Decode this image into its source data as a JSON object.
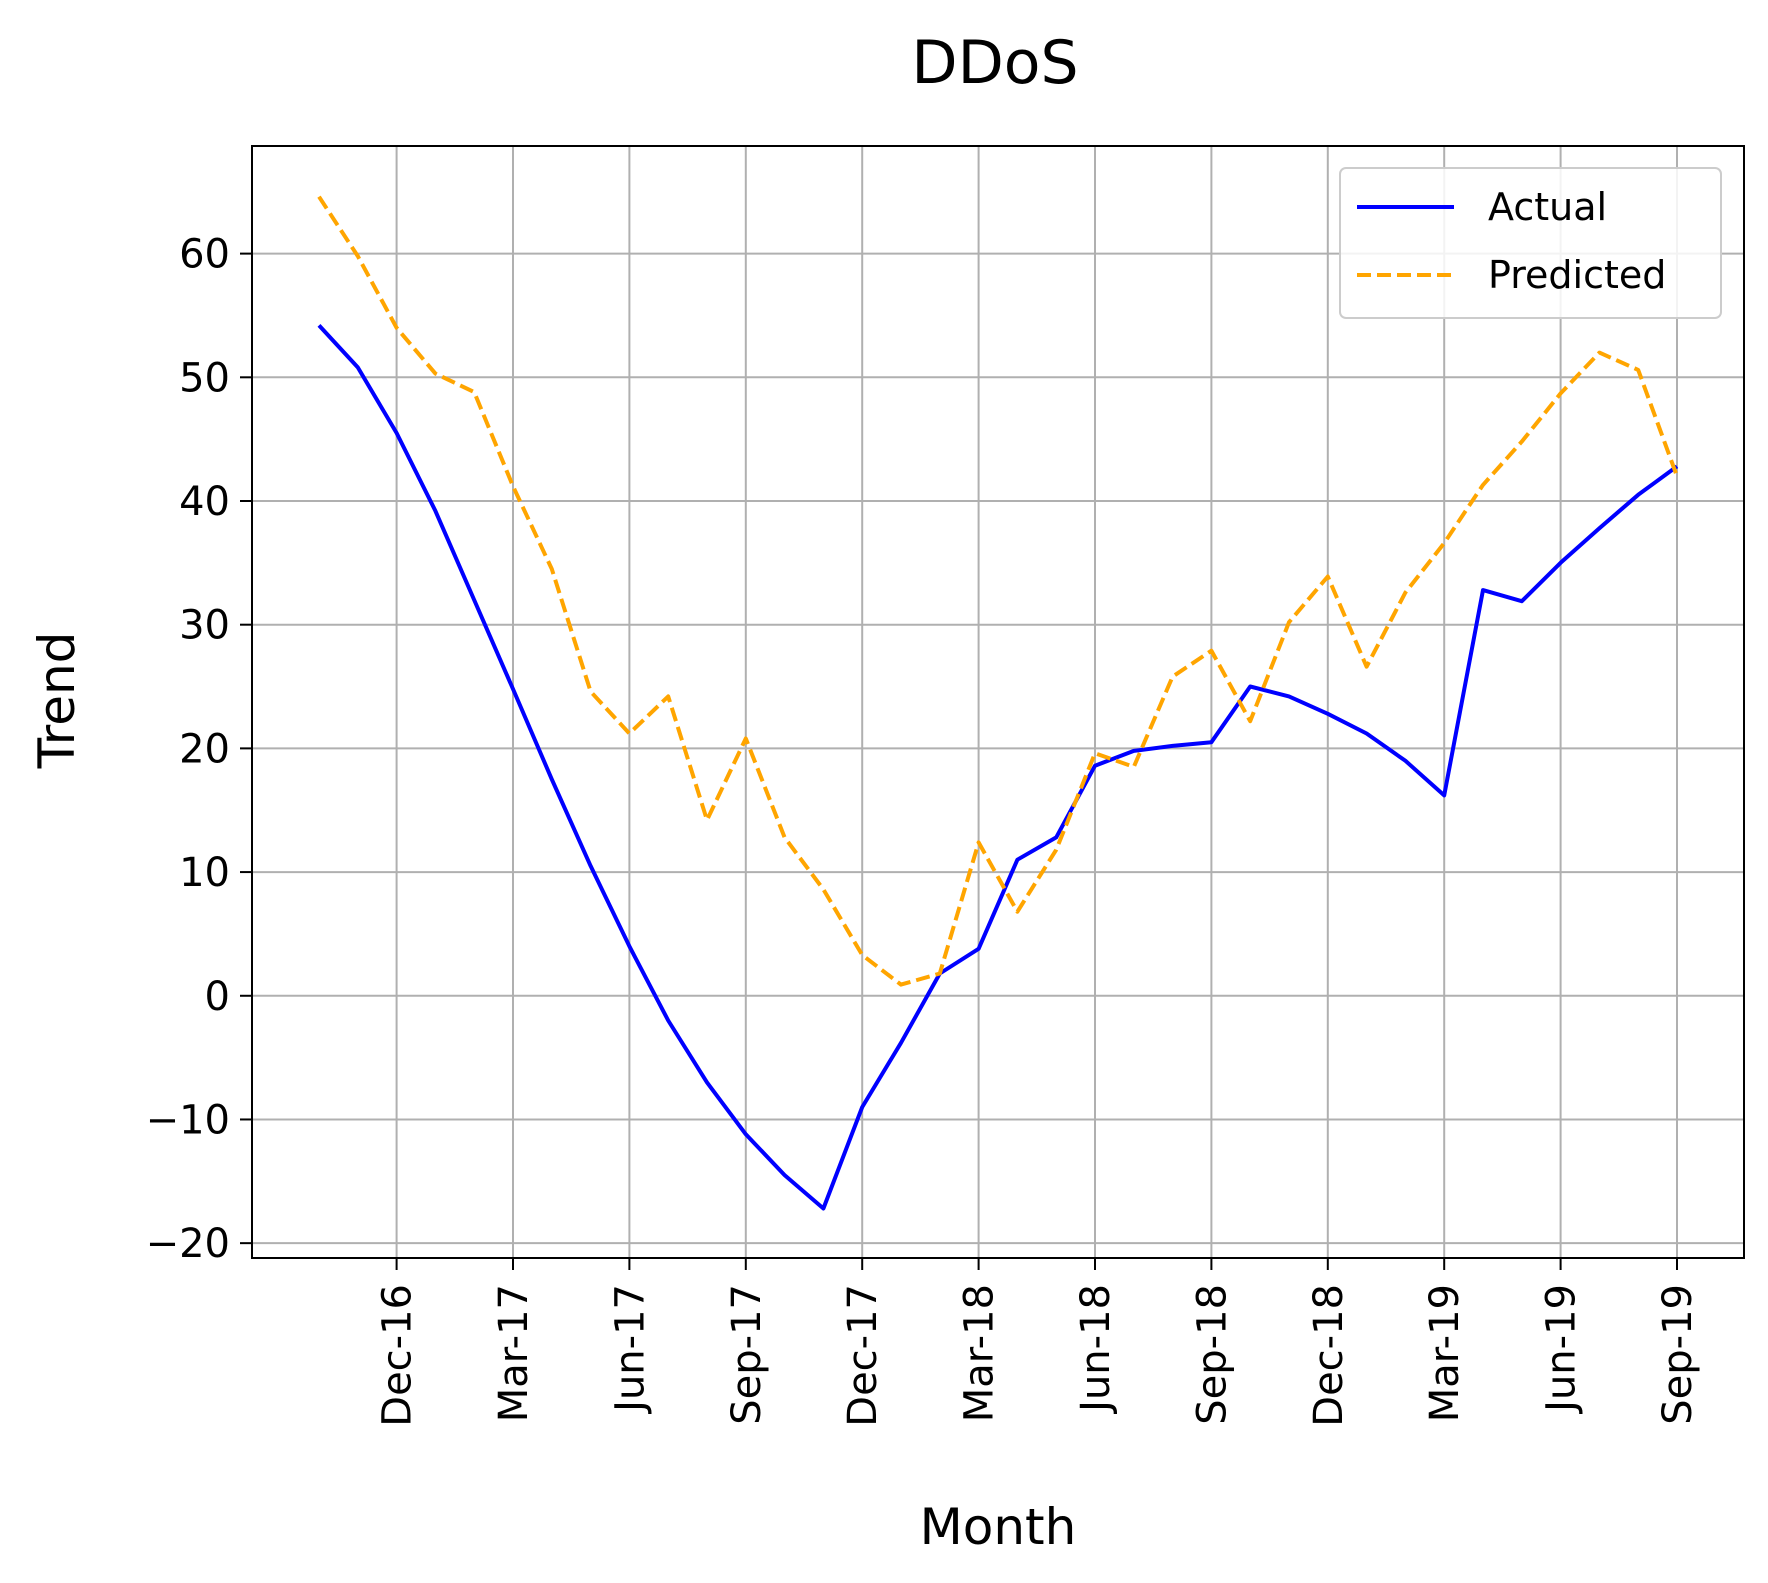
{
  "chart_data": {
    "type": "line",
    "title": "DDoS",
    "xlabel": "Month",
    "ylabel": "Trend",
    "x_tick_labels": [
      "Dec-16",
      "Mar-17",
      "Jun-17",
      "Sep-17",
      "Dec-17",
      "Mar-18",
      "Jun-18",
      "Sep-18",
      "Dec-18",
      "Mar-19",
      "Jun-19",
      "Sep-19"
    ],
    "y_ticks": [
      -20,
      -10,
      0,
      10,
      20,
      30,
      40,
      50,
      60
    ],
    "ylim": [
      -21.2,
      68.7
    ],
    "grid": true,
    "legend_position": "top-right",
    "x": [
      "Oct-16",
      "Nov-16",
      "Dec-16",
      "Jan-17",
      "Feb-17",
      "Mar-17",
      "Apr-17",
      "May-17",
      "Jun-17",
      "Jul-17",
      "Aug-17",
      "Sep-17",
      "Oct-17",
      "Nov-17",
      "Dec-17",
      "Jan-18",
      "Feb-18",
      "Mar-18",
      "Apr-18",
      "May-18",
      "Jun-18",
      "Jul-18",
      "Aug-18",
      "Sep-18",
      "Oct-18",
      "Nov-18",
      "Dec-18",
      "Jan-19",
      "Feb-19",
      "Mar-19",
      "Apr-19",
      "May-19",
      "Jun-19",
      "Jul-19",
      "Aug-19",
      "Sep-19"
    ],
    "series": [
      {
        "name": "Actual",
        "color": "#0000ff",
        "dash": "solid",
        "values": [
          54.2,
          50.8,
          45.5,
          39.2,
          32.0,
          24.8,
          17.5,
          10.5,
          4.0,
          -2.0,
          -7.0,
          -11.2,
          -14.5,
          -17.2,
          -9.0,
          -3.8,
          1.8,
          3.8,
          11.0,
          12.8,
          18.6,
          19.8,
          20.2,
          20.5,
          25.0,
          24.2,
          22.8,
          21.2,
          19.0,
          16.2,
          32.8,
          31.9,
          35.0,
          37.8,
          40.5,
          42.8
        ]
      },
      {
        "name": "Predicted",
        "color": "#ffa500",
        "dash": "dashed",
        "values": [
          64.6,
          59.8,
          54.0,
          50.3,
          48.8,
          41.2,
          34.5,
          24.6,
          21.2,
          24.2,
          14.2,
          20.8,
          12.8,
          8.6,
          3.3,
          0.9,
          1.8,
          12.4,
          6.8,
          11.8,
          19.6,
          18.5,
          25.8,
          27.9,
          22.2,
          30.2,
          33.9,
          26.6,
          32.6,
          36.6,
          41.3,
          44.8,
          48.7,
          52.0,
          50.6,
          42.0
        ]
      }
    ]
  }
}
